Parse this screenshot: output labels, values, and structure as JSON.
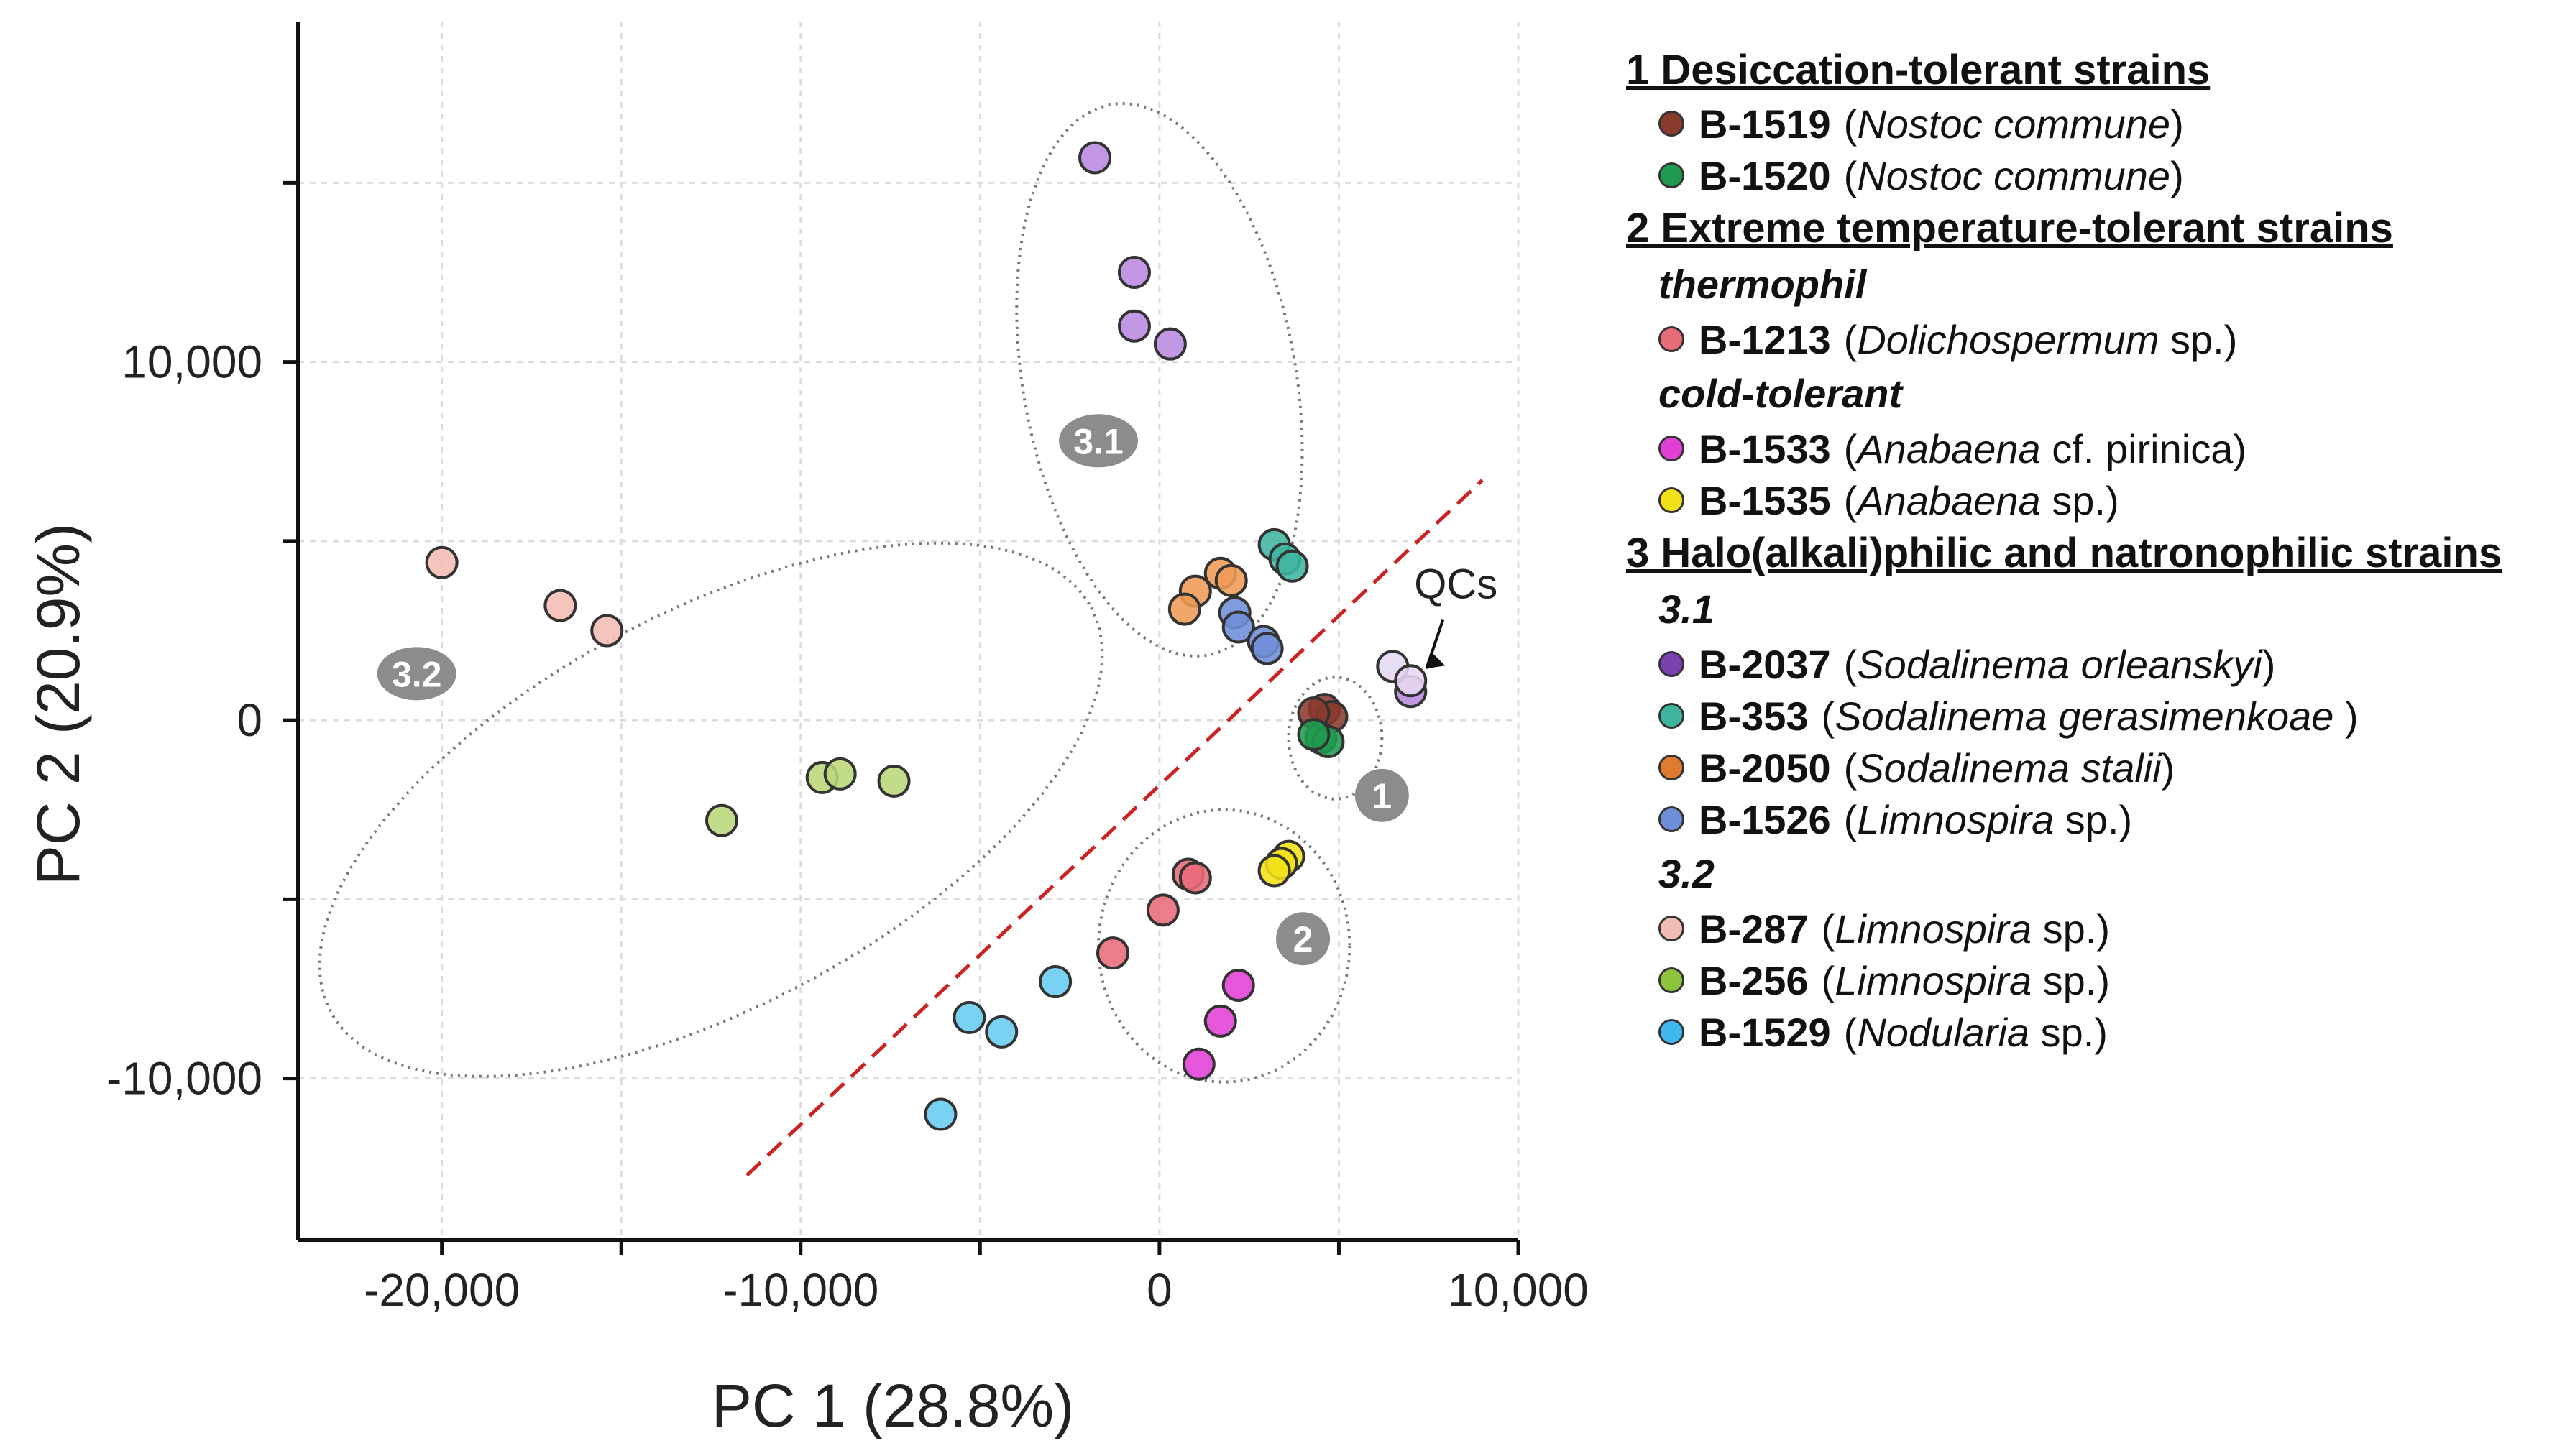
{
  "chart_data": {
    "type": "scatter",
    "xlabel": "PC 1 (28.8%)",
    "ylabel": "PC 2 (20.9%)",
    "xlim": [
      -24000,
      10000
    ],
    "ylim": [
      -14500,
      19500
    ],
    "xticks": [
      -20000,
      -10000,
      0,
      10000
    ],
    "xtick_labels": [
      "-20,000",
      "-10,000",
      "0",
      "10,000"
    ],
    "yticks": [
      -10000,
      0,
      10000
    ],
    "ytick_labels": [
      "-10,000",
      "0",
      "10,000"
    ],
    "grid": true,
    "legend_position": "right",
    "series": [
      {
        "name": "B-1519",
        "color": "#8b3a2e",
        "points": [
          [
            4600,
            300
          ],
          [
            4800,
            100
          ],
          [
            4300,
            200
          ]
        ]
      },
      {
        "name": "B-1520",
        "color": "#1f9b4f",
        "points": [
          [
            4500,
            -500
          ],
          [
            4700,
            -600
          ],
          [
            4300,
            -400
          ]
        ]
      },
      {
        "name": "B-1213",
        "color": "#e86b78",
        "points": [
          [
            800,
            -4300
          ],
          [
            1000,
            -4400
          ],
          [
            100,
            -5300
          ],
          [
            -1300,
            -6500
          ]
        ]
      },
      {
        "name": "B-1533",
        "color": "#e23fd6",
        "points": [
          [
            2200,
            -7400
          ],
          [
            1700,
            -8400
          ],
          [
            1100,
            -9600
          ]
        ]
      },
      {
        "name": "B-1535",
        "color": "#f2e117",
        "points": [
          [
            3600,
            -3800
          ],
          [
            3400,
            -4000
          ],
          [
            3200,
            -4200
          ]
        ]
      },
      {
        "name": "B-2037",
        "color": "#b98ae0",
        "points": [
          [
            -1800,
            15700
          ],
          [
            -700,
            12500
          ],
          [
            -700,
            11000
          ],
          [
            300,
            10500
          ],
          [
            7000,
            800
          ]
        ]
      },
      {
        "name": "B-353",
        "color": "#3fb5a0",
        "points": [
          [
            3200,
            4900
          ],
          [
            3500,
            4500
          ],
          [
            3700,
            4300
          ]
        ]
      },
      {
        "name": "B-2050",
        "color": "#ef9a55",
        "points": [
          [
            1700,
            4100
          ],
          [
            2000,
            3900
          ],
          [
            1000,
            3600
          ],
          [
            700,
            3100
          ]
        ]
      },
      {
        "name": "B-1526",
        "color": "#6f8ed8",
        "points": [
          [
            2100,
            3000
          ],
          [
            2200,
            2600
          ],
          [
            2900,
            2200
          ],
          [
            3000,
            2000
          ]
        ]
      },
      {
        "name": "B-287",
        "color": "#f2bcb4",
        "points": [
          [
            -20000,
            4400
          ],
          [
            -16700,
            3200
          ],
          [
            -15400,
            2500
          ]
        ]
      },
      {
        "name": "B-256",
        "color": "#b9d77a",
        "points": [
          [
            -12200,
            -2800
          ],
          [
            -9400,
            -1600
          ],
          [
            -8900,
            -1500
          ],
          [
            -7400,
            -1700
          ]
        ]
      },
      {
        "name": "B-1529",
        "color": "#66ccf0",
        "points": [
          [
            -2900,
            -7300
          ],
          [
            -5300,
            -8300
          ],
          [
            -4400,
            -8700
          ],
          [
            -6100,
            -11000
          ]
        ]
      },
      {
        "name": "QCs",
        "color": "#e6d8f2",
        "points": [
          [
            6500,
            1500
          ],
          [
            7000,
            1100
          ]
        ]
      }
    ],
    "divider_line": {
      "from": [
        -11500,
        -12700
      ],
      "to": [
        9000,
        6700
      ],
      "color": "#cc2222",
      "style": "dashed"
    },
    "clusters": [
      {
        "label": "3.1",
        "cx": 0,
        "cy": 9500,
        "rx": 3800,
        "ry": 7800,
        "angle": -10,
        "tag": [
          -1700,
          7800
        ]
      },
      {
        "label": "3.2",
        "cx": -12500,
        "cy": -2500,
        "rx": 12000,
        "ry": 5500,
        "angle": -28,
        "tag": [
          -20700,
          1300
        ]
      },
      {
        "label": "1",
        "cx": 4900,
        "cy": -500,
        "rx": 1300,
        "ry": 1700,
        "angle": 0,
        "tag": [
          6200,
          -2100
        ]
      },
      {
        "label": "2",
        "cx": 1800,
        "cy": -6300,
        "rx": 3500,
        "ry": 3800,
        "angle": 0,
        "tag": [
          4000,
          -6100
        ]
      }
    ],
    "annotation": {
      "text": "QCs",
      "at": [
        7200,
        1200
      ],
      "text_at": [
        7500,
        3200
      ]
    }
  },
  "legend": {
    "groups": [
      {
        "title": "1 Desiccation-tolerant strains",
        "blocks": [
          {
            "sub": "",
            "items": [
              {
                "code": "B-1519",
                "pre": "(",
                "species": "Nostoc commune",
                "post": ")",
                "color": "#8b3a2e"
              },
              {
                "code": "B-1520",
                "pre": "(",
                "species": "Nostoc commune",
                "post": ")",
                "color": "#1f9b4f"
              }
            ]
          }
        ]
      },
      {
        "title": "2 Extreme temperature-tolerant strains",
        "blocks": [
          {
            "sub": "thermophil",
            "items": [
              {
                "code": "B-1213",
                "pre": "(",
                "species": "Dolichospermum",
                "post": " sp.)",
                "color": "#e86b78"
              }
            ]
          },
          {
            "sub": "cold-tolerant",
            "items": [
              {
                "code": "B-1533",
                "pre": "(",
                "species": "Anabaena",
                "post": " cf. pirinica)",
                "color": "#e23fd6"
              },
              {
                "code": "B-1535",
                "pre": "(",
                "species": "Anabaena",
                "post": " sp.)",
                "color": "#f2e117"
              }
            ]
          }
        ]
      },
      {
        "title": "3 Halo(alkali)philic and natronophilic strains",
        "blocks": [
          {
            "sub": "3.1",
            "items": [
              {
                "code": "B-2037",
                "pre": "(",
                "species": "Sodalinema orleanskyi",
                "post": ")",
                "color": "#7b3fb0"
              },
              {
                "code": "B-353",
                "pre": "(",
                "species": "Sodalinema gerasimenkoae",
                "post": " )",
                "color": "#3fb5a0"
              },
              {
                "code": "B-2050",
                "pre": "(",
                "species": "Sodalinema stalii",
                "post": ")",
                "color": "#e07a30"
              },
              {
                "code": "B-1526",
                "pre": "(",
                "species": "Limnospira",
                "post": " sp.)",
                "color": "#6f8ed8"
              }
            ]
          },
          {
            "sub": "3.2",
            "items": [
              {
                "code": "B-287",
                "pre": "(",
                "species": "Limnospira",
                "post": " sp.)",
                "color": "#f2bcb4"
              },
              {
                "code": "B-256",
                "pre": "(",
                "species": "Limnospira",
                "post": " sp.)",
                "color": "#8cc43c"
              },
              {
                "code": "B-1529",
                "pre": "(",
                "species": "Nodularia",
                "post": " sp.)",
                "color": "#3fb8ee"
              }
            ]
          }
        ]
      }
    ]
  }
}
